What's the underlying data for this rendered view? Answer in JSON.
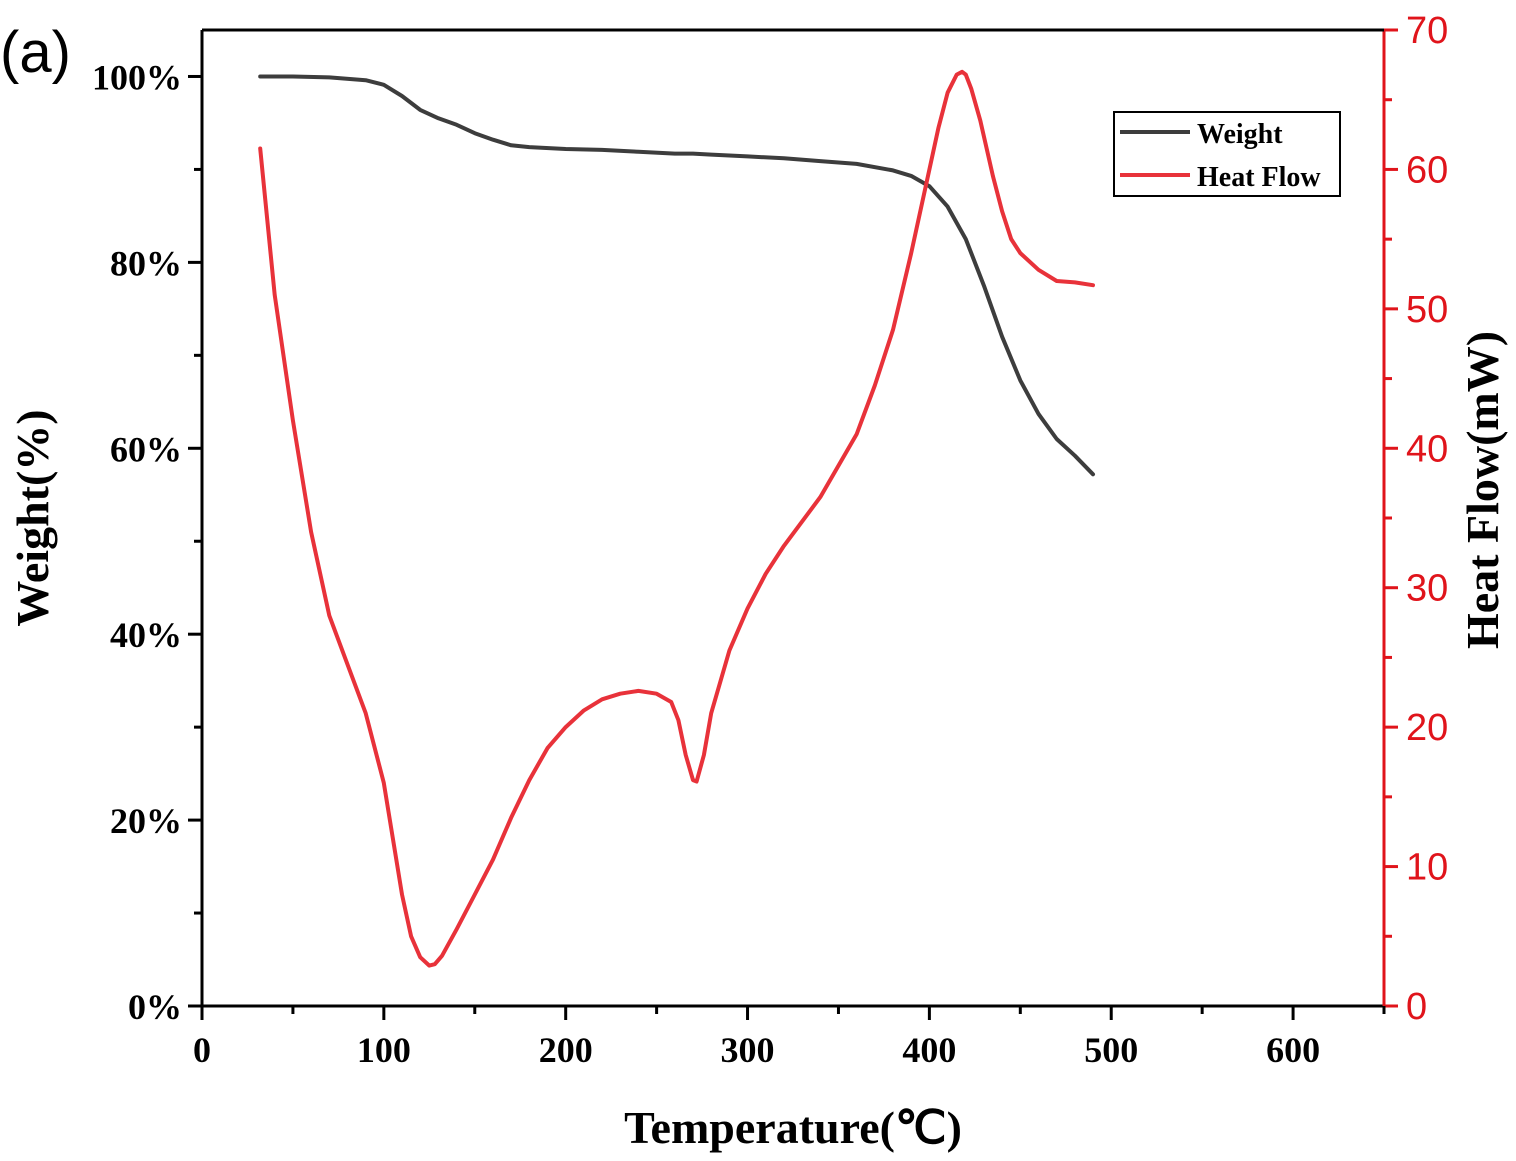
{
  "panel_label": "(a)",
  "chart_data": {
    "type": "line",
    "xlabel": "Temperature(℃)",
    "ylabel_left": "Weight(%)",
    "ylabel_right": "Heat Flow(mW)",
    "xlim": [
      0,
      650
    ],
    "ylim_left": [
      0,
      105
    ],
    "ylim_right": [
      0,
      70
    ],
    "x_ticks": [
      "0",
      "100",
      "200",
      "300",
      "400",
      "500",
      "600"
    ],
    "y_left_ticks": [
      "0%",
      "20%",
      "40%",
      "60%",
      "80%",
      "100%"
    ],
    "y_right_ticks": [
      "0",
      "10",
      "20",
      "30",
      "40",
      "50",
      "60",
      "70"
    ],
    "legend_position": "top-right",
    "grid": false,
    "colors": {
      "weight": "#3d3d3d",
      "heat_flow": "#e8323a",
      "right_axis": "#e0141b"
    },
    "series": [
      {
        "name": "Weight",
        "axis": "left",
        "x": [
          32,
          50,
          70,
          90,
          100,
          110,
          120,
          130,
          140,
          150,
          160,
          170,
          180,
          200,
          220,
          240,
          260,
          270,
          280,
          300,
          320,
          340,
          360,
          380,
          390,
          400,
          410,
          420,
          430,
          440,
          450,
          460,
          470,
          480,
          490
        ],
        "y": [
          100,
          100,
          99.9,
          99.6,
          99.1,
          97.9,
          96.4,
          95.5,
          94.8,
          93.9,
          93.2,
          92.6,
          92.4,
          92.2,
          92.1,
          91.9,
          91.7,
          91.7,
          91.6,
          91.4,
          91.2,
          90.9,
          90.6,
          89.9,
          89.3,
          88.2,
          86.0,
          82.5,
          77.5,
          72.0,
          67.3,
          63.7,
          61.0,
          59.2,
          57.2
        ]
      },
      {
        "name": "Heat Flow",
        "axis": "right",
        "x": [
          32,
          40,
          50,
          60,
          70,
          80,
          90,
          100,
          105,
          110,
          115,
          120,
          125,
          128,
          132,
          140,
          150,
          160,
          170,
          180,
          190,
          200,
          210,
          220,
          230,
          240,
          250,
          258,
          262,
          266,
          270,
          272,
          276,
          280,
          290,
          300,
          310,
          320,
          340,
          360,
          370,
          380,
          390,
          400,
          405,
          410,
          415,
          418,
          420,
          423,
          428,
          435,
          440,
          445,
          450,
          460,
          470,
          480,
          490
        ],
        "y": [
          61.5,
          51,
          42,
          34,
          28,
          24.5,
          21,
          16,
          12,
          8,
          5,
          3.5,
          2.9,
          3.0,
          3.6,
          5.5,
          8.0,
          10.5,
          13.5,
          16.2,
          18.5,
          20.0,
          21.2,
          22.0,
          22.4,
          22.6,
          22.4,
          21.8,
          20.5,
          18.0,
          16.2,
          16.1,
          18.0,
          21.0,
          25.5,
          28.5,
          31.0,
          33.0,
          36.5,
          41.0,
          44.5,
          48.5,
          54.0,
          60.0,
          63.0,
          65.5,
          66.8,
          67.0,
          66.8,
          65.8,
          63.5,
          59.5,
          57.0,
          55.0,
          54.0,
          52.8,
          52.0,
          51.9,
          51.7
        ]
      }
    ]
  }
}
